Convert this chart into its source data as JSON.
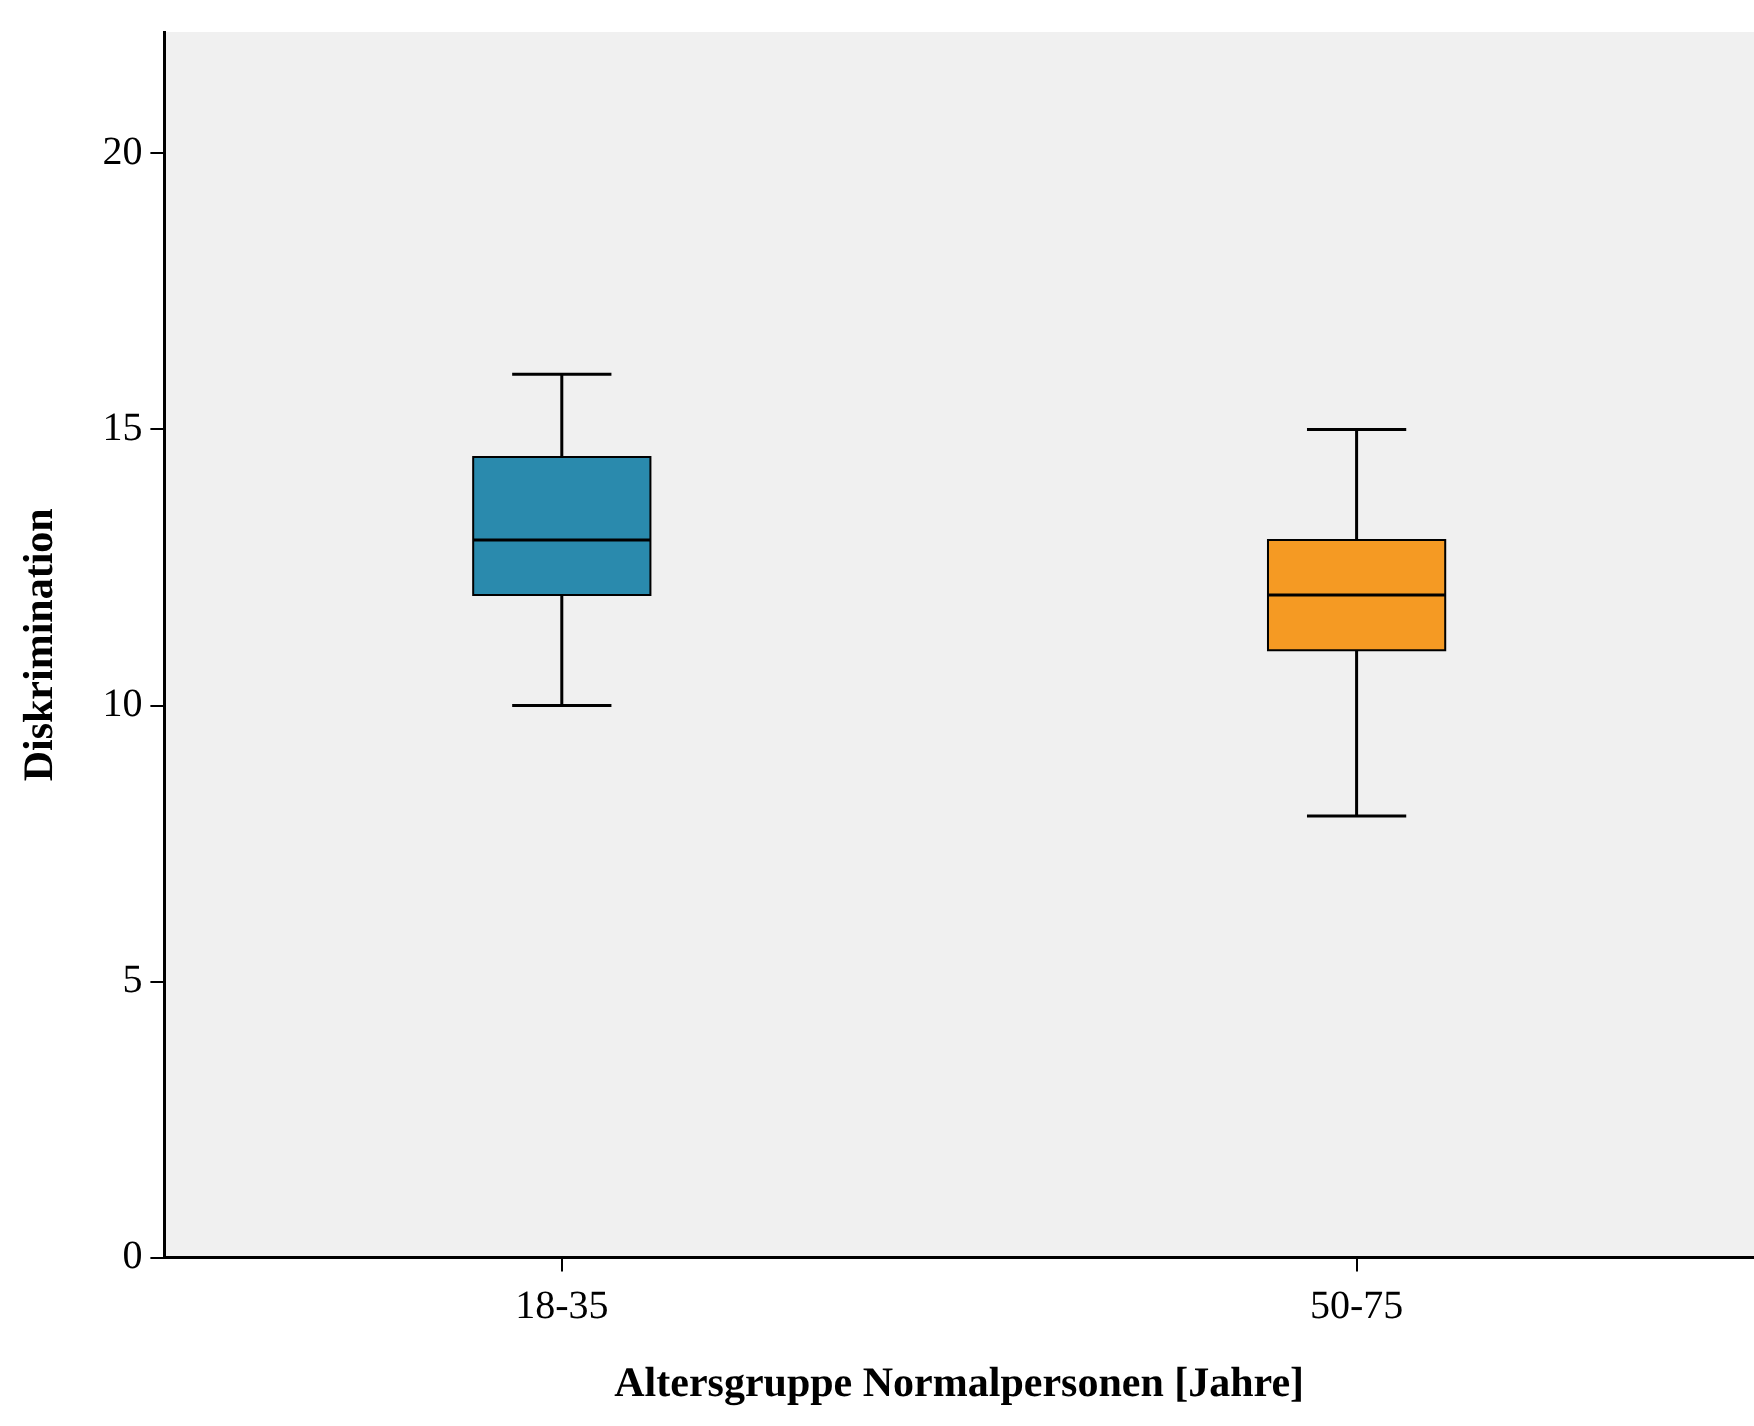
{
  "chart_data": {
    "type": "box",
    "xlabel": "Altersgruppe Normalpersonen [Jahre]",
    "ylabel": "Diskrimination",
    "categories": [
      "18-35",
      "50-75"
    ],
    "boxes": [
      {
        "low": 10,
        "q1": 12,
        "median": 13,
        "q3": 14.5,
        "high": 16
      },
      {
        "low": 8,
        "q1": 11,
        "median": 12,
        "q3": 13,
        "high": 15
      }
    ],
    "colors": [
      "#2a8aad",
      "#f59a23"
    ],
    "ylim": [
      0,
      22.2
    ],
    "yticks": [
      0,
      5,
      10,
      15,
      20
    ],
    "grid": false,
    "legend": false
  }
}
